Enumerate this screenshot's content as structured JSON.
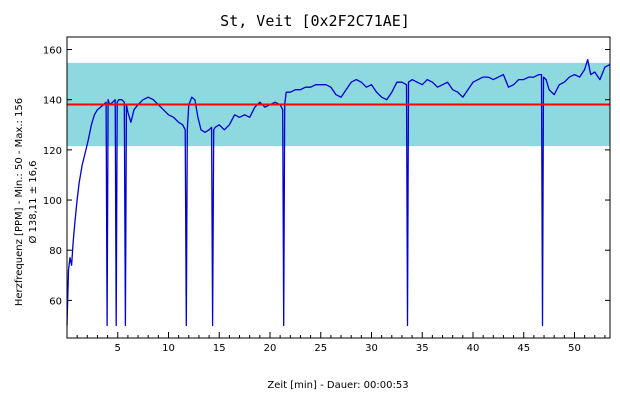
{
  "chart_data": {
    "type": "line",
    "title": "St, Veit [0x2F2C71AE]",
    "xlabel": "Zeit [min] - Dauer: 00:00:53",
    "ylabel": "Herzfrequenz [PPM] - Min.: 50 - Max.: 156",
    "ylabel2": "Ø 138,11 ± 16,6",
    "xlim": [
      0,
      53.5
    ],
    "ylim": [
      45,
      165
    ],
    "x_ticks": [
      5,
      10,
      15,
      20,
      25,
      30,
      35,
      40,
      45,
      50
    ],
    "y_ticks": [
      60,
      80,
      100,
      120,
      140,
      160
    ],
    "grid": false,
    "band": {
      "low": 121.5,
      "high": 154.7,
      "color": "#8ed8e0"
    },
    "mean_line": {
      "value": 138.11,
      "color": "#ff0000"
    },
    "series": [
      {
        "color": "#0000cc",
        "x": [
          0.0,
          0.15,
          0.3,
          0.45,
          0.6,
          0.8,
          1.0,
          1.2,
          1.5,
          1.8,
          2.1,
          2.4,
          2.7,
          3.0,
          3.3,
          3.6,
          3.85,
          3.95,
          4.05,
          4.2,
          4.5,
          4.75,
          4.85,
          4.95,
          5.1,
          5.4,
          5.65,
          5.75,
          5.85,
          6.0,
          6.3,
          6.6,
          7.0,
          7.5,
          8.0,
          8.5,
          9.0,
          9.5,
          10.0,
          10.5,
          11.0,
          11.4,
          11.65,
          11.75,
          11.85,
          12.0,
          12.3,
          12.6,
          12.9,
          13.2,
          13.6,
          14.0,
          14.25,
          14.35,
          14.45,
          14.6,
          15.0,
          15.5,
          16.0,
          16.5,
          17.0,
          17.5,
          18.0,
          18.5,
          19.0,
          19.5,
          20.0,
          20.5,
          21.0,
          21.25,
          21.35,
          21.45,
          21.6,
          22.0,
          22.5,
          23.0,
          23.5,
          24.0,
          24.5,
          25.0,
          25.5,
          26.0,
          26.5,
          27.0,
          27.5,
          28.0,
          28.5,
          29.0,
          29.5,
          30.0,
          30.5,
          31.0,
          31.5,
          32.0,
          32.5,
          33.0,
          33.45,
          33.55,
          33.65,
          34.0,
          34.5,
          35.0,
          35.5,
          36.0,
          36.5,
          37.0,
          37.5,
          38.0,
          38.5,
          39.0,
          39.5,
          40.0,
          40.5,
          41.0,
          41.5,
          42.0,
          42.5,
          43.0,
          43.5,
          44.0,
          44.5,
          45.0,
          45.5,
          46.0,
          46.5,
          46.75,
          46.85,
          46.95,
          47.2,
          47.5,
          48.0,
          48.5,
          49.0,
          49.5,
          50.0,
          50.5,
          51.0,
          51.3,
          51.6,
          52.0,
          52.5,
          53.0,
          53.5
        ],
        "y": [
          50,
          72,
          77,
          74,
          83,
          92,
          100,
          107,
          114,
          119,
          124,
          130,
          134,
          136,
          137,
          138,
          139,
          50,
          140,
          138,
          139,
          140,
          50,
          139,
          140,
          140,
          139,
          50,
          138,
          135,
          131,
          136,
          138,
          140,
          141,
          140,
          138,
          136,
          134,
          133,
          131,
          130,
          128,
          50,
          128,
          138,
          141,
          140,
          133,
          128,
          127,
          128,
          129,
          50,
          128,
          129,
          130,
          128,
          130,
          134,
          133,
          134,
          133,
          137,
          139,
          137,
          138,
          139,
          138,
          136,
          50,
          138,
          143,
          143,
          144,
          144,
          145,
          145,
          146,
          146,
          146,
          145,
          142,
          141,
          144,
          147,
          148,
          147,
          145,
          146,
          143,
          141,
          140,
          143,
          147,
          147,
          146,
          50,
          147,
          148,
          147,
          146,
          148,
          147,
          145,
          146,
          147,
          144,
          143,
          141,
          144,
          147,
          148,
          149,
          149,
          148,
          149,
          150,
          145,
          146,
          148,
          148,
          149,
          149,
          150,
          150,
          50,
          149,
          148,
          144,
          142,
          146,
          147,
          149,
          150,
          149,
          152,
          156,
          150,
          151,
          148,
          153,
          154
        ]
      }
    ]
  }
}
